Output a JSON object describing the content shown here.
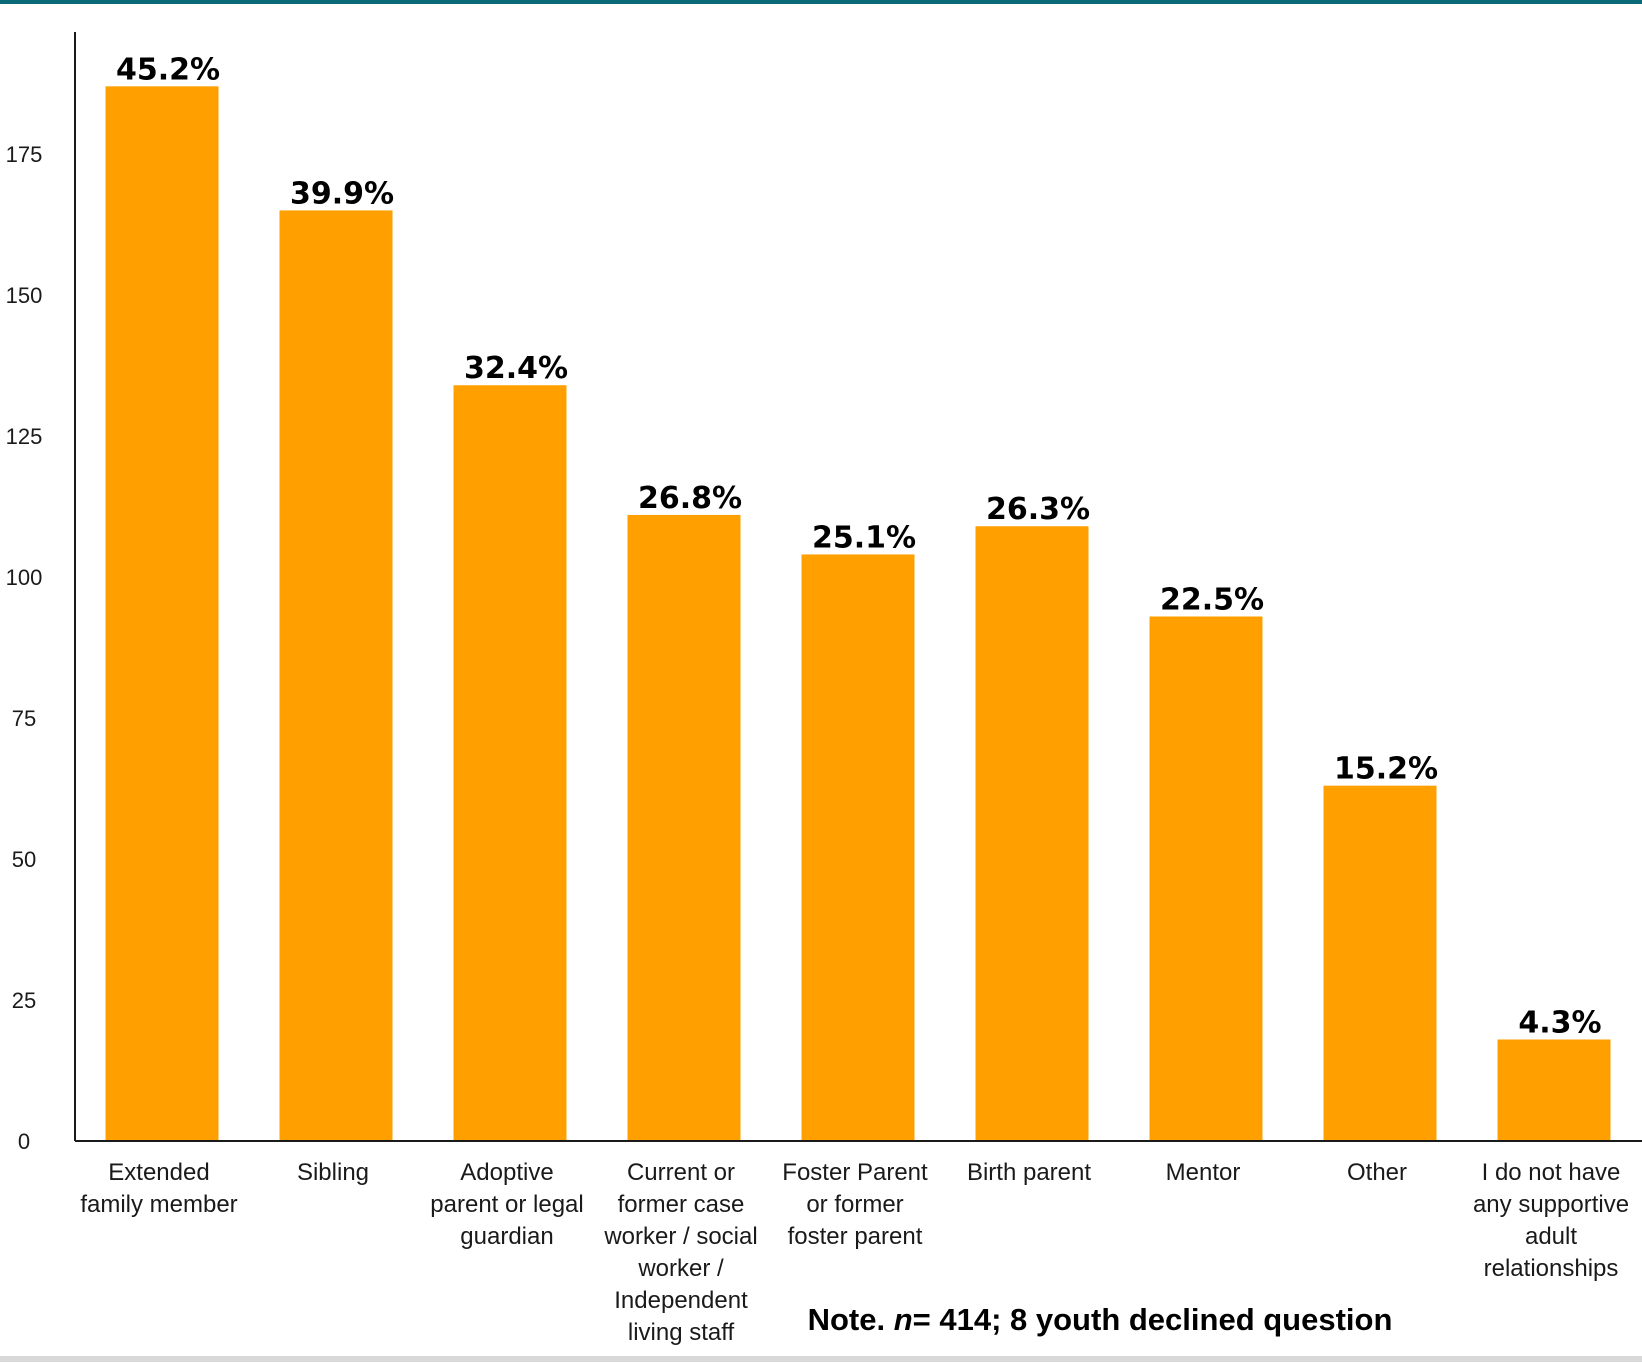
{
  "colors": {
    "bar": "#ffa000",
    "axis": "#1a1a1a",
    "top_rule": "#0b6a78"
  },
  "chart_data": {
    "type": "bar",
    "title": "",
    "xlabel": "",
    "ylabel": "",
    "ylim": [
      0,
      200
    ],
    "yticks": [
      0,
      25,
      50,
      75,
      100,
      125,
      150,
      175
    ],
    "grid": false,
    "categories": [
      "Extended family member",
      "Sibling",
      "Adoptive parent or legal guardian",
      "Current or former case worker / social worker / Independent living staff",
      "Foster Parent or former foster parent",
      "Birth parent",
      "Mentor",
      "Other",
      "I do not have any supportive adult relationships"
    ],
    "category_lines": [
      [
        "Extended",
        "family member"
      ],
      [
        "Sibling"
      ],
      [
        "Adoptive",
        "parent or legal",
        "guardian"
      ],
      [
        "Current or",
        "former case",
        "worker / social",
        "worker /",
        "Independent",
        "living staff"
      ],
      [
        "Foster Parent",
        "or former",
        "foster parent"
      ],
      [
        "Birth parent"
      ],
      [
        "Mentor"
      ],
      [
        "Other"
      ],
      [
        "I do not have",
        "any supportive",
        "adult",
        "relationships"
      ]
    ],
    "values": [
      187,
      165,
      134,
      111,
      104,
      109,
      93,
      63,
      18
    ],
    "data_labels": [
      "45.2%",
      "39.9%",
      "32.4%",
      "26.8%",
      "25.1%",
      "26.3%",
      "22.5%",
      "15.2%",
      "4.3%"
    ],
    "note": {
      "prefix": "Note. ",
      "n": "n",
      "suffix": "= 414; 8 youth declined question"
    }
  }
}
